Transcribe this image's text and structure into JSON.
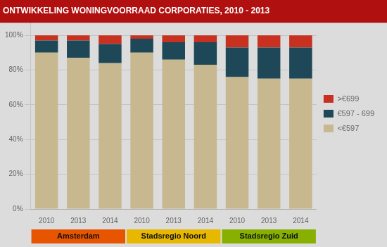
{
  "chart_data": {
    "type": "bar",
    "title": "ONTWIKKELING WONINGVOORRAAD CORPORATIES, 2010 - 2013",
    "groups": [
      {
        "name": "Amsterdam",
        "color": "#e85500",
        "categories": [
          "2010",
          "2013",
          "2014"
        ]
      },
      {
        "name": "Stadsregio Noord",
        "color": "#e8b800",
        "categories": [
          "2010",
          "2013",
          "2014"
        ]
      },
      {
        "name": "Stadsregio Zuid",
        "color": "#88b000",
        "categories": [
          "2010",
          "2013",
          "2014"
        ]
      }
    ],
    "series": [
      {
        "name": ">€699",
        "color": "#c83020",
        "values": [
          3.0,
          3.0,
          5.0,
          2.0,
          4.0,
          4.0,
          7.0,
          7.0,
          7.0
        ]
      },
      {
        "name": "€597 - 699",
        "color": "#1e4858",
        "values": [
          7.0,
          10.0,
          11.0,
          8.0,
          10.0,
          13.0,
          17.0,
          18.0,
          18.0
        ]
      },
      {
        "name": "<€597",
        "color": "#c8b890",
        "values": [
          90.0,
          87.0,
          84.0,
          90.0,
          86.0,
          83.0,
          76.0,
          75.0,
          75.0
        ]
      }
    ],
    "stacked": true,
    "ylim": [
      0,
      108
    ],
    "yticks": [
      {
        "value": 0,
        "label": "0%"
      },
      {
        "value": 20,
        "label": "20%"
      },
      {
        "value": 40,
        "label": "40%"
      },
      {
        "value": 60,
        "label": "60%"
      },
      {
        "value": 80,
        "label": "80%"
      },
      {
        "value": 100,
        "label": "100%"
      }
    ],
    "grid": true,
    "legend": "right"
  }
}
